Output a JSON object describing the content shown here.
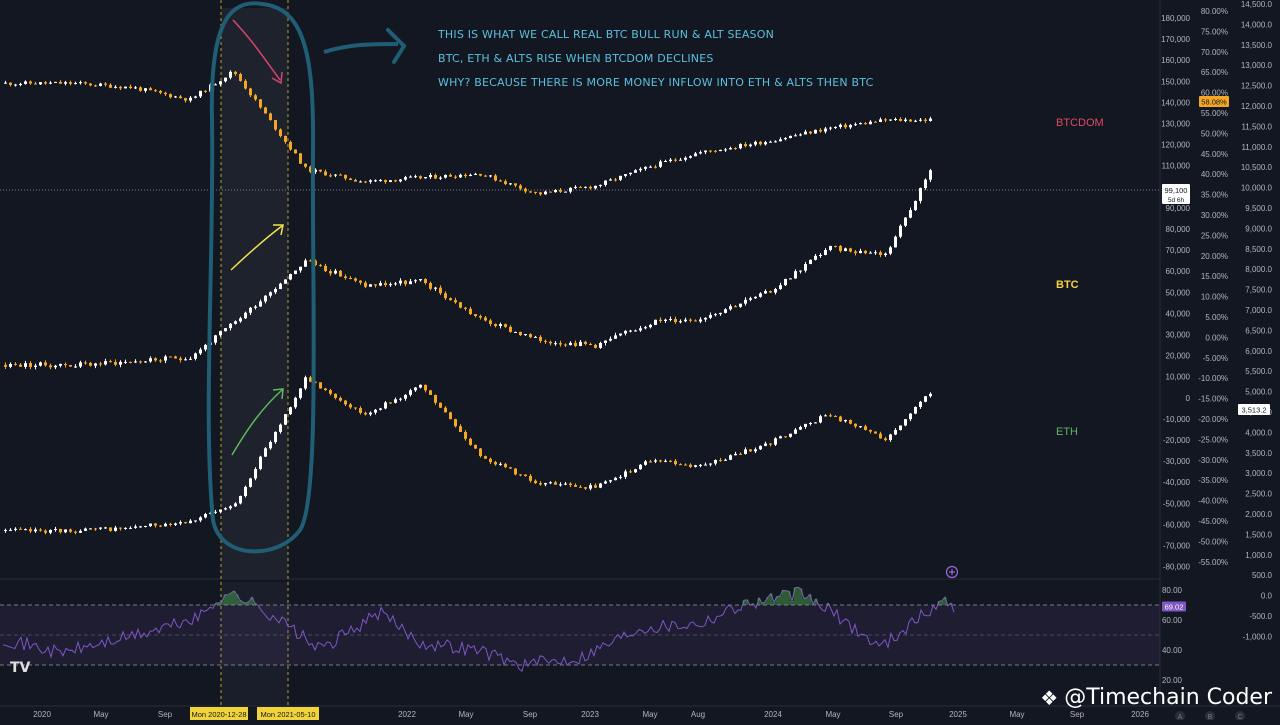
{
  "annotations": [
    "THIS IS WHAT WE CALL REAL BTC BULL RUN & ALT SEASON",
    "BTC, ETH & ALTS RISE WHEN BTCDOM DECLINES",
    "WHY? BECAUSE THERE IS MORE MONEY INFLOW INTO ETH & ALTS THEN BTC"
  ],
  "series_labels": {
    "btcdom": "BTCDOM",
    "btc": "BTC",
    "eth": "ETH"
  },
  "colors": {
    "background": "#131722",
    "up": "#ffffff",
    "down": "#f5a623",
    "btcdom_label": "#e04a5f",
    "btc_label": "#f5d142",
    "eth_label": "#5fb85f",
    "annotation": "#5bc0de",
    "highlight_circle": "#1f5e75",
    "arrow_red": "#d6456a",
    "arrow_yellow": "#f2e14b",
    "arrow_green": "#5fb85f",
    "rsi_line": "#7e57c2"
  },
  "price_badges": {
    "btc_price": "99,100",
    "btc_timer": "5d 6h",
    "btcdom_pct": "58.08%",
    "eth_price": "3,513.2",
    "rsi_value": "69.02"
  },
  "axis_left_ticks": [
    "180,000",
    "170,000",
    "160,000",
    "150,000",
    "140,000",
    "130,000",
    "120,000",
    "110,000",
    "100,000",
    "90,000",
    "80,000",
    "70,000",
    "60,000",
    "50,000",
    "40,000",
    "30,000",
    "20,000",
    "10,000",
    "0",
    "-10,000",
    "-20,000",
    "-30,000",
    "-40,000",
    "-50,000",
    "-60,000",
    "-70,000",
    "-80,000"
  ],
  "axis_mid_ticks": [
    "80.00%",
    "75.00%",
    "70.00%",
    "65.00%",
    "60.00%",
    "55.00%",
    "50.00%",
    "45.00%",
    "40.00%",
    "35.00%",
    "30.00%",
    "25.00%",
    "20.00%",
    "15.00%",
    "10.00%",
    "5.00%",
    "0.00%",
    "-5.00%",
    "-10.00%",
    "-15.00%",
    "-20.00%",
    "-25.00%",
    "-30.00%",
    "-35.00%",
    "-40.00%",
    "-45.00%",
    "-50.00%",
    "-55.00%"
  ],
  "axis_right_ticks": [
    "14,500.0",
    "14,000.0",
    "13,500.0",
    "13,000.0",
    "12,500.0",
    "12,000.0",
    "11,500.0",
    "11,000.0",
    "10,500.0",
    "10,000.0",
    "9,500.0",
    "9,000.0",
    "8,500.0",
    "8,000.0",
    "7,500.0",
    "7,000.0",
    "6,500.0",
    "6,000.0",
    "5,500.0",
    "5,000.0",
    "4,500.0",
    "4,000.0",
    "3,500.0",
    "3,000.0",
    "2,500.0",
    "2,000.0",
    "1,500.0",
    "1,000.0",
    "500.0",
    "0.0",
    "-500.0",
    "-1,000.0"
  ],
  "rsi_ticks": [
    "80.00",
    "60.00",
    "40.00",
    "20.00"
  ],
  "x_labels": [
    "2020",
    "May",
    "Sep",
    "2022",
    "May",
    "Sep",
    "2023",
    "May",
    "Aug",
    "2024",
    "May",
    "Sep",
    "2025",
    "May",
    "Sep",
    "2026"
  ],
  "x_highlight_labels": [
    "Mon 2020-12-28",
    "Mon 2021-05-10"
  ],
  "extra_badges": [
    "A",
    "B",
    "C"
  ],
  "watermark": "@Timechain Coder",
  "tv_logo": "TV",
  "chart_data": {
    "type": "line",
    "x": [
      "2020-01",
      "2020-05",
      "2020-09",
      "2020-12",
      "2021-05",
      "2021-09",
      "2022-01",
      "2022-05",
      "2022-09",
      "2023-01",
      "2023-05",
      "2023-08",
      "2024-01",
      "2024-05",
      "2024-09",
      "2024-12"
    ],
    "series": [
      {
        "name": "BTCDOM",
        "values": [
          67,
          66,
          63,
          70,
          46,
          43,
          44,
          45,
          40,
          42,
          47,
          50,
          53,
          56,
          58,
          58.08
        ]
      },
      {
        "name": "BTC",
        "values": [
          7200,
          8800,
          10800,
          27000,
          57000,
          45000,
          47000,
          29000,
          19000,
          16500,
          28000,
          29000,
          42000,
          63000,
          60000,
          99100
        ]
      },
      {
        "name": "ETH",
        "values": [
          130,
          200,
          380,
          730,
          3900,
          3000,
          3700,
          2000,
          1300,
          1200,
          1900,
          1700,
          2300,
          3000,
          2400,
          3513.2
        ]
      }
    ],
    "subplots": [
      {
        "name": "RSI",
        "ylim": [
          20,
          80
        ],
        "last": 69.02
      }
    ]
  }
}
